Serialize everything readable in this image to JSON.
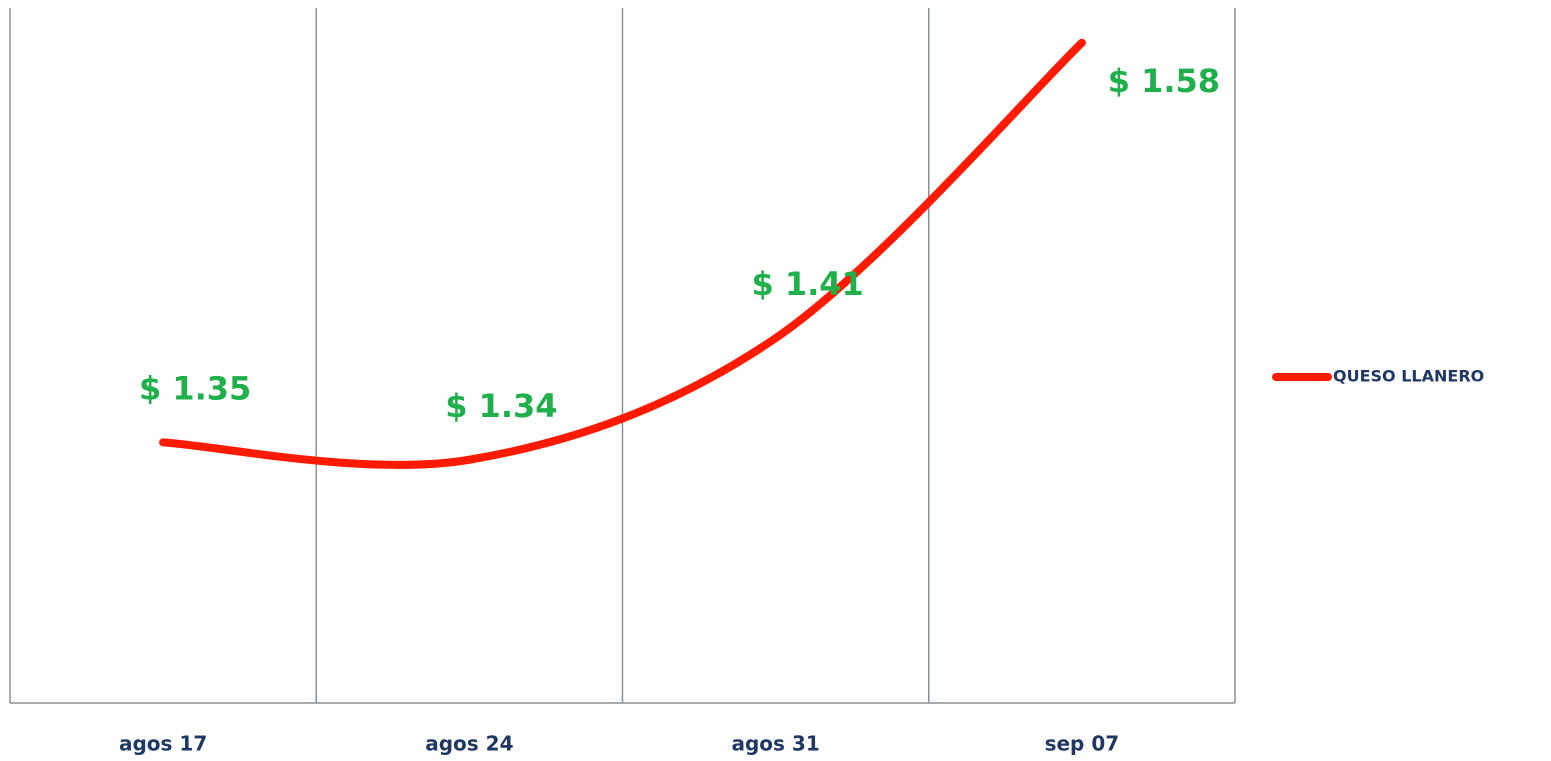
{
  "chart_data": {
    "type": "line",
    "categories": [
      "agos 17",
      "agos 24",
      "agos 31",
      "sep 07"
    ],
    "series": [
      {
        "name": "QUESO LLANERO",
        "color": "#ff1a00",
        "values": [
          1.35,
          1.34,
          1.41,
          1.58
        ],
        "value_labels": [
          "$ 1.35",
          "$ 1.34",
          "$ 1.41",
          "$ 1.58"
        ],
        "label_color": "#1fb04b"
      }
    ],
    "ylim": [
      1.2,
      1.6
    ],
    "grid": true,
    "legend": "right"
  }
}
